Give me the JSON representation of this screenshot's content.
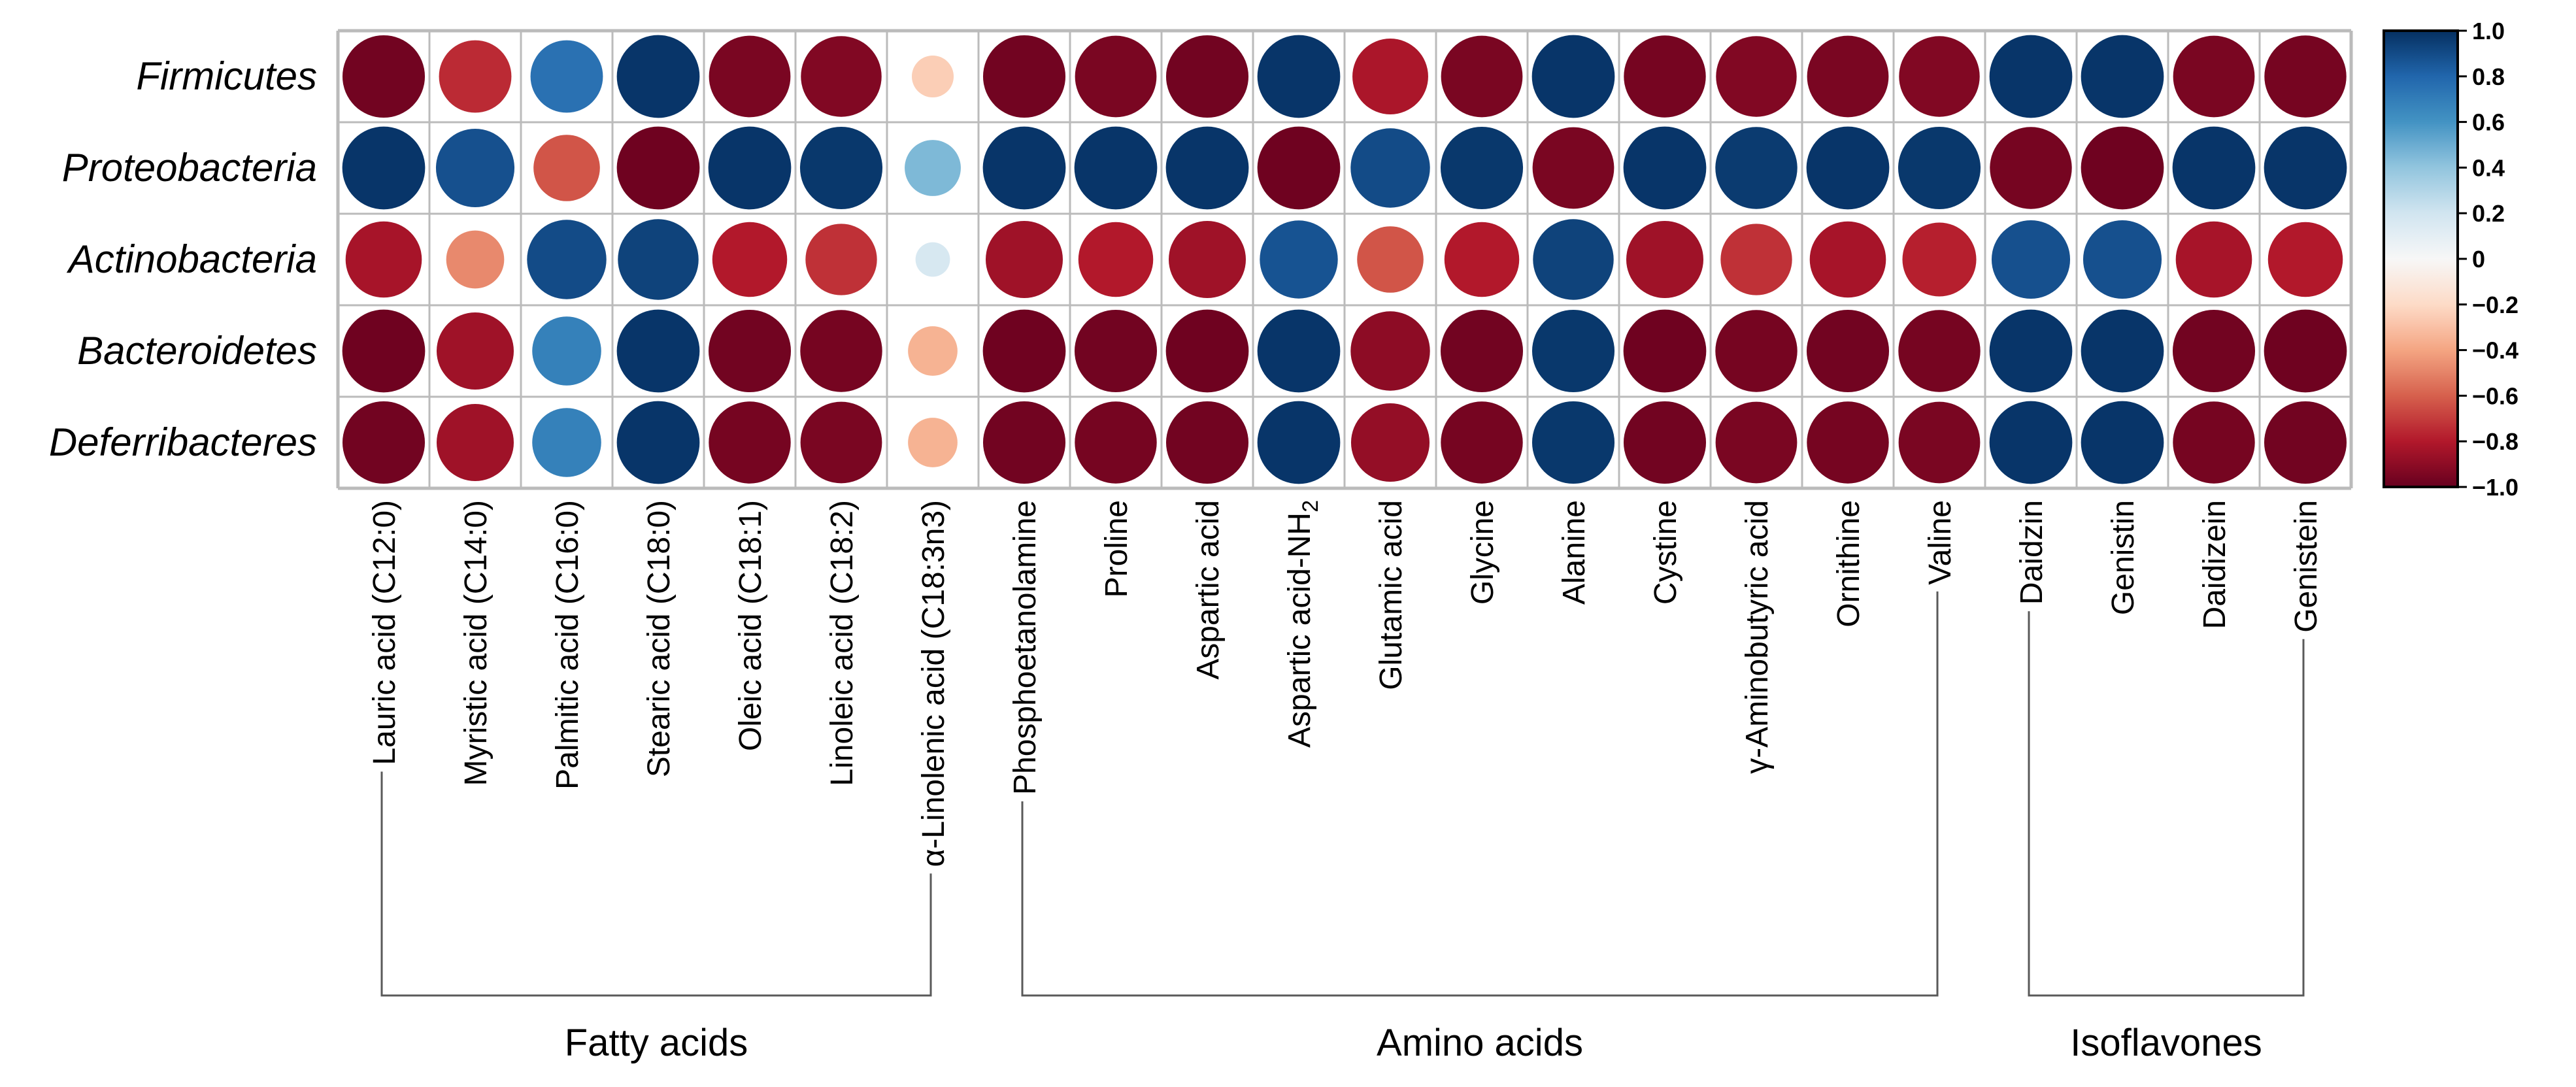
{
  "chart_data": {
    "type": "heatmap",
    "style": "circle-correlogram",
    "rows": [
      "Firmicutes",
      "Proteobacteria",
      "Actinobacteria",
      "Bacteroidetes",
      "Deferribacteres"
    ],
    "columns": [
      "Lauric acid (C12:0)",
      "Myristic acid (C14:0)",
      "Palmitic acid (C16:0)",
      "Stearic acid (C18:0)",
      "Oleic acid (C18:1)",
      "Linoleic acid (C18:2)",
      "α-Linolenic acid (C18:3n3)",
      "Phosphoetanolamine",
      "Proline",
      "Aspartic acid",
      "Aspartic acid-NH2",
      "Glutamic acid",
      "Glycine",
      "Alanine",
      "Cystine",
      "γ-Aminobutyric acid",
      "Ornithine",
      "Valine",
      "Daidzin",
      "Genistin",
      "Daidizein",
      "Genistein"
    ],
    "column_label_parts": [
      null,
      null,
      null,
      null,
      null,
      null,
      null,
      null,
      null,
      null,
      {
        "base": "Aspartic acid-NH",
        "subscript": "2"
      },
      null,
      null,
      null,
      null,
      null,
      null,
      null,
      null,
      null,
      null,
      null
    ],
    "values": [
      [
        -0.97,
        -0.75,
        0.75,
        0.98,
        -0.95,
        -0.93,
        -0.25,
        -0.97,
        -0.95,
        -0.97,
        0.98,
        -0.82,
        -0.95,
        0.98,
        -0.96,
        -0.93,
        -0.95,
        -0.93,
        0.98,
        0.98,
        -0.95,
        -0.96
      ],
      [
        0.98,
        0.88,
        -0.63,
        -0.98,
        0.98,
        0.97,
        0.45,
        0.98,
        0.98,
        0.98,
        -0.98,
        0.9,
        0.97,
        -0.95,
        0.98,
        0.96,
        0.98,
        0.97,
        -0.96,
        -0.98,
        0.98,
        0.98
      ],
      [
        -0.83,
        -0.48,
        0.9,
        0.93,
        -0.8,
        -0.73,
        0.17,
        -0.85,
        -0.8,
        -0.85,
        0.87,
        -0.63,
        -0.8,
        0.93,
        -0.85,
        -0.73,
        -0.83,
        -0.78,
        0.88,
        0.88,
        -0.83,
        -0.8
      ],
      [
        -0.98,
        -0.85,
        0.68,
        0.98,
        -0.97,
        -0.96,
        -0.35,
        -0.98,
        -0.97,
        -0.98,
        0.98,
        -0.9,
        -0.97,
        0.97,
        -0.98,
        -0.96,
        -0.97,
        -0.96,
        0.98,
        0.98,
        -0.97,
        -0.98
      ],
      [
        -0.97,
        -0.85,
        0.68,
        0.98,
        -0.96,
        -0.95,
        -0.35,
        -0.97,
        -0.96,
        -0.97,
        0.98,
        -0.88,
        -0.96,
        0.97,
        -0.97,
        -0.95,
        -0.96,
        -0.95,
        0.98,
        0.98,
        -0.96,
        -0.97
      ]
    ],
    "groups": [
      {
        "name": "Fatty acids",
        "start": 0,
        "end": 6
      },
      {
        "name": "Amino acids",
        "start": 7,
        "end": 17
      },
      {
        "name": "Isoflavones",
        "start": 18,
        "end": 21
      }
    ],
    "colorbar": {
      "min": -1.0,
      "max": 1.0,
      "ticks": [
        1.0,
        0.8,
        0.6,
        0.4,
        0.2,
        0,
        -0.2,
        -0.4,
        -0.6,
        -0.8,
        -1.0
      ],
      "tick_labels": [
        "1.0",
        "0.8",
        "0.6",
        "0.4",
        "0.2",
        "0",
        "−0.2",
        "−0.4",
        "−0.6",
        "−0.8",
        "−1.0"
      ]
    },
    "colors": {
      "strong_negative": "#67001F",
      "negative": "#B2182B",
      "mid_negative": "#D6604D",
      "weak_negative": "#F4A582",
      "pale_negative": "#FDDBC7",
      "zero": "#F7F7F7",
      "pale_positive": "#D1E5F0",
      "weak_positive": "#92C5DE",
      "mid_positive": "#4393C3",
      "positive": "#2166AC",
      "strong_positive": "#053061",
      "grid": "#BBBBBB",
      "bracket": "#595959"
    }
  }
}
